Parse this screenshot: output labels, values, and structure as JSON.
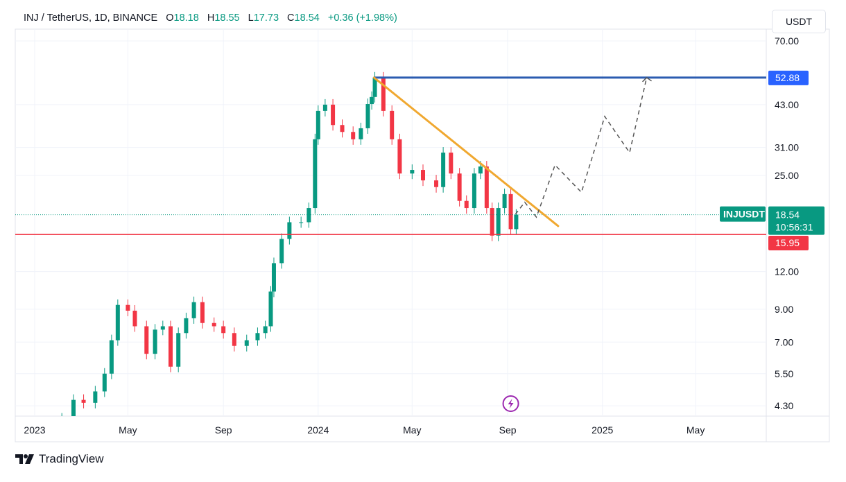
{
  "header": {
    "symbol": "INJ / TetherUS, 1D, BINANCE",
    "open_label": "O",
    "open": "18.18",
    "high_label": "H",
    "high": "18.55",
    "low_label": "L",
    "low": "17.73",
    "close_label": "C",
    "close": "18.54",
    "change": "+0.36 (+1.98%)"
  },
  "currency_button": "USDT",
  "branding": "TradingView",
  "colors": {
    "up": "#089981",
    "down": "#f23645",
    "resistance": "#2962ff",
    "support": "#f23645",
    "trendline": "#f0a830",
    "projection": "#555555",
    "event": "#9c27b0"
  },
  "chart_data": {
    "type": "candlestick",
    "symbol": "INJUSDT",
    "interval": "1D",
    "y_scale": "log",
    "ylim": [
      3.9,
      75
    ],
    "xlim": [
      "2022-12-07",
      "2025-07-31"
    ],
    "grid": true,
    "y_ticks": [
      "70.00",
      "43.00",
      "31.00",
      "25.00",
      "12.00",
      "9.00",
      "7.00",
      "5.50",
      "4.30"
    ],
    "x_ticks": [
      {
        "label": "2023",
        "date": "2023-01-01"
      },
      {
        "label": "May",
        "date": "2023-05-01"
      },
      {
        "label": "Sep",
        "date": "2023-09-01"
      },
      {
        "label": "2024",
        "date": "2024-01-01"
      },
      {
        "label": "May",
        "date": "2024-05-01"
      },
      {
        "label": "Sep",
        "date": "2024-09-01"
      },
      {
        "label": "2025",
        "date": "2025-01-01"
      },
      {
        "label": "May",
        "date": "2025-05-01"
      }
    ],
    "closes": [
      [
        "2023-02-05",
        3.9
      ],
      [
        "2023-02-20",
        4.5
      ],
      [
        "2023-03-05",
        4.4
      ],
      [
        "2023-03-20",
        4.8
      ],
      [
        "2023-04-01",
        5.5
      ],
      [
        "2023-04-10",
        7.1
      ],
      [
        "2023-04-18",
        9.3
      ],
      [
        "2023-05-01",
        8.9
      ],
      [
        "2023-05-10",
        7.9
      ],
      [
        "2023-05-25",
        6.4
      ],
      [
        "2023-06-05",
        7.7
      ],
      [
        "2023-06-15",
        7.9
      ],
      [
        "2023-06-25",
        5.8
      ],
      [
        "2023-07-05",
        7.5
      ],
      [
        "2023-07-15",
        8.4
      ],
      [
        "2023-07-25",
        9.5
      ],
      [
        "2023-08-05",
        8.1
      ],
      [
        "2023-08-20",
        7.9
      ],
      [
        "2023-09-01",
        7.5
      ],
      [
        "2023-09-15",
        6.8
      ],
      [
        "2023-10-01",
        7.1
      ],
      [
        "2023-10-15",
        7.5
      ],
      [
        "2023-10-25",
        7.9
      ],
      [
        "2023-11-01",
        10.3
      ],
      [
        "2023-11-05",
        12.8
      ],
      [
        "2023-11-15",
        15.4
      ],
      [
        "2023-11-25",
        17.5
      ],
      [
        "2023-12-10",
        17.5
      ],
      [
        "2023-12-20",
        19.5
      ],
      [
        "2023-12-28",
        33
      ],
      [
        "2024-01-01",
        41
      ],
      [
        "2024-01-10",
        43
      ],
      [
        "2024-01-20",
        36.8
      ],
      [
        "2024-02-01",
        34.9
      ],
      [
        "2024-02-15",
        33
      ],
      [
        "2024-02-25",
        35.9
      ],
      [
        "2024-03-05",
        43.2
      ],
      [
        "2024-03-10",
        45.6
      ],
      [
        "2024-03-14",
        52.9
      ],
      [
        "2024-03-25",
        41
      ],
      [
        "2024-04-05",
        33
      ],
      [
        "2024-04-15",
        25.4
      ],
      [
        "2024-05-01",
        26.1
      ],
      [
        "2024-05-15",
        24.1
      ],
      [
        "2024-06-01",
        22.9
      ],
      [
        "2024-06-10",
        29.8
      ],
      [
        "2024-06-20",
        25.4
      ],
      [
        "2024-07-01",
        20.6
      ],
      [
        "2024-07-10",
        19.5
      ],
      [
        "2024-07-20",
        25.4
      ],
      [
        "2024-07-28",
        26.8
      ],
      [
        "2024-08-05",
        19.5
      ],
      [
        "2024-08-12",
        15.8
      ],
      [
        "2024-08-20",
        19.5
      ],
      [
        "2024-08-28",
        21.7
      ],
      [
        "2024-09-05",
        16.6
      ],
      [
        "2024-09-12",
        18.54
      ]
    ],
    "resistance_line": {
      "price": 52.88,
      "label": "52.88",
      "from": "2024-03-13"
    },
    "support_line": {
      "price": 15.95,
      "label": "15.95"
    },
    "trendline": {
      "from": [
        "2024-03-13",
        52.88
      ],
      "to": [
        "2024-11-05",
        17.0
      ]
    },
    "last_price": {
      "price": 18.54,
      "label": "18.54",
      "countdown": "10:56:31",
      "symbol_label": "INJUSDT"
    },
    "projection_path": [
      [
        "2024-09-11",
        18.6
      ],
      [
        "2024-09-23",
        20.4
      ],
      [
        "2024-10-08",
        18.2
      ],
      [
        "2024-11-01",
        27.1
      ],
      [
        "2024-12-05",
        22.0
      ],
      [
        "2025-01-04",
        39.3
      ],
      [
        "2025-02-05",
        29.8
      ],
      [
        "2025-02-27",
        52.9
      ]
    ],
    "event_marker": {
      "date": "2024-09-05",
      "icon": "lightning-icon"
    }
  }
}
